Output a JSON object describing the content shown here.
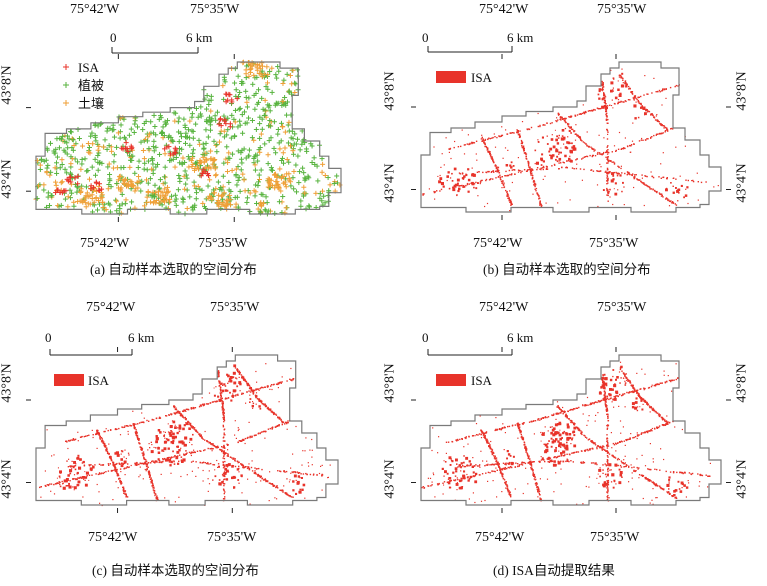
{
  "colors": {
    "isa": "#e8332a",
    "veg": "#57b33e",
    "soil": "#ef9f36",
    "border": "#7a7a7a"
  },
  "axes": {
    "lon_left": "75°42'W",
    "lon_right": "75°35'W",
    "lat_top": "43°8'N",
    "lat_bottom": "43°4'N"
  },
  "scale": {
    "start": "0",
    "end": "6 km"
  },
  "legend_a": [
    {
      "label": "ISA",
      "color": "#e8332a"
    },
    {
      "label": "植被",
      "color": "#57b33e"
    },
    {
      "label": "土壤",
      "color": "#ef9f36"
    }
  ],
  "legend_isa": "ISA",
  "captions": {
    "a": "(a) 自动样本选取的空间分布",
    "b": "(b) 自动样本选取的空间分布",
    "c": "(c) 自动样本选取的空间分布",
    "d": "(d) ISA自动提取结果"
  }
}
